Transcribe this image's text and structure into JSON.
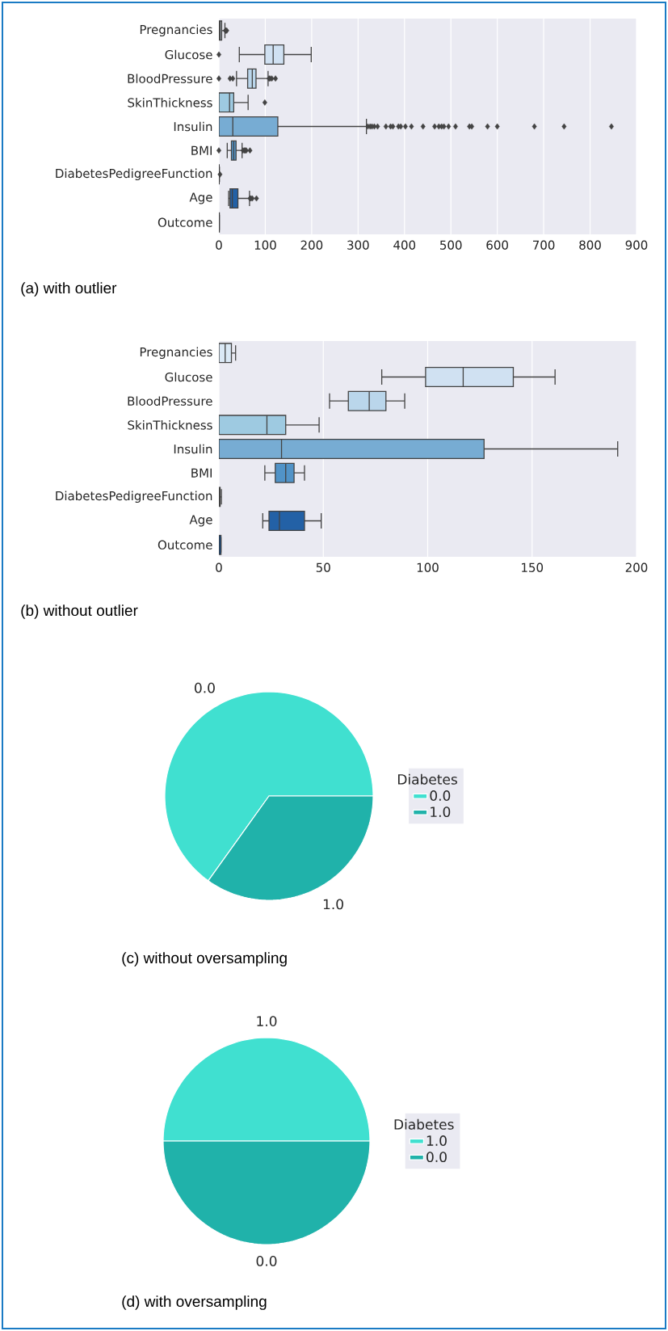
{
  "chart_data": [
    {
      "type": "box",
      "orientation": "horizontal",
      "grid": "x",
      "categories": [
        "Pregnancies",
        "Glucose",
        "BloodPressure",
        "SkinThickness",
        "Insulin",
        "BMI",
        "DiabetesPedigreeFunction",
        "Age",
        "Outcome"
      ],
      "boxes": [
        {
          "low": 0,
          "q1": 1,
          "median": 3,
          "q3": 6,
          "high": 13,
          "outliers": [
            14,
            15,
            17
          ]
        },
        {
          "low": 44,
          "q1": 99,
          "median": 117,
          "q3": 140,
          "high": 199,
          "outliers": [
            0
          ]
        },
        {
          "low": 38,
          "q1": 62,
          "median": 72,
          "q3": 80,
          "high": 106,
          "outliers": [
            0,
            24,
            30,
            108,
            110,
            114,
            122
          ]
        },
        {
          "low": 0,
          "q1": 0,
          "median": 23,
          "q3": 32,
          "high": 63,
          "outliers": [
            99
          ]
        },
        {
          "low": 0,
          "q1": 0,
          "median": 30,
          "q3": 127,
          "high": 318,
          "outliers": [
            321,
            326,
            330,
            335,
            342,
            360,
            370,
            375,
            387,
            392,
            402,
            415,
            440,
            465,
            474,
            480,
            485,
            495,
            510,
            540,
            545,
            579,
            600,
            680,
            744,
            846
          ]
        },
        {
          "low": 18,
          "q1": 27,
          "median": 32,
          "q3": 37,
          "high": 50,
          "outliers": [
            0,
            52,
            55,
            57,
            59,
            67
          ]
        },
        {
          "low": 0.08,
          "q1": 0.24,
          "median": 0.37,
          "q3": 0.63,
          "high": 1.2,
          "outliers": [
            2.4
          ]
        },
        {
          "low": 21,
          "q1": 24,
          "median": 29,
          "q3": 41,
          "high": 66,
          "outliers": [
            67,
            69,
            72,
            81
          ]
        },
        {
          "low": 0,
          "q1": 0,
          "median": 0,
          "q3": 1,
          "high": 1
        }
      ],
      "colors": [
        "#dbe9f6",
        "#d0e1f2",
        "#bad6eb",
        "#9ecae1",
        "#77acd3",
        "#5193c7",
        "#3574b3",
        "#2361a6",
        "#0d4a8f"
      ],
      "xlim": [
        0,
        900
      ],
      "xticks": [
        0,
        100,
        200,
        300,
        400,
        500,
        600,
        700,
        800,
        900
      ],
      "annotations": [
        "(a) with outlier"
      ]
    },
    {
      "type": "box",
      "orientation": "horizontal",
      "grid": "x",
      "categories": [
        "Pregnancies",
        "Glucose",
        "BloodPressure",
        "SkinThickness",
        "Insulin",
        "BMI",
        "DiabetesPedigreeFunction",
        "Age",
        "Outcome"
      ],
      "boxes": [
        {
          "low": 0,
          "q1": 0,
          "median": 3,
          "q3": 6,
          "high": 8
        },
        {
          "low": 78,
          "q1": 99,
          "median": 117,
          "q3": 141,
          "high": 161
        },
        {
          "low": 53,
          "q1": 62,
          "median": 72,
          "q3": 80,
          "high": 89
        },
        {
          "low": 0,
          "q1": 0,
          "median": 23,
          "q3": 32,
          "high": 48
        },
        {
          "low": 0,
          "q1": 0,
          "median": 30,
          "q3": 127,
          "high": 191
        },
        {
          "low": 22,
          "q1": 27,
          "median": 32,
          "q3": 36,
          "high": 41
        },
        {
          "low": 0.08,
          "q1": 0.24,
          "median": 0.36,
          "q3": 0.6,
          "high": 1.2
        },
        {
          "low": 21,
          "q1": 24,
          "median": 29,
          "q3": 41,
          "high": 49
        },
        {
          "low": 0,
          "q1": 0,
          "median": 0,
          "q3": 1,
          "high": 1
        }
      ],
      "colors": [
        "#dbe9f6",
        "#d0e1f2",
        "#bad6eb",
        "#9ecae1",
        "#77acd3",
        "#5193c7",
        "#3574b3",
        "#2361a6",
        "#0d4a8f"
      ],
      "xlim": [
        0,
        200
      ],
      "xticks": [
        0,
        50,
        100,
        150,
        200
      ],
      "annotations": [
        "(b) without outlier"
      ]
    },
    {
      "type": "pie",
      "categories": [
        "0.0",
        "1.0"
      ],
      "values": [
        65.1,
        34.9
      ],
      "colors": [
        "#40e0d0",
        "#20b2aa"
      ],
      "legend": "right",
      "legend_title": "Diabetes",
      "annotations": [
        "(c)  without oversampling"
      ]
    },
    {
      "type": "pie",
      "categories": [
        "1.0",
        "0.0"
      ],
      "values": [
        50,
        50
      ],
      "colors": [
        "#40e0d0",
        "#20b2aa"
      ],
      "legend": "right",
      "legend_title": "Diabetes",
      "annotations": [
        "(d)  with oversampling"
      ]
    }
  ]
}
